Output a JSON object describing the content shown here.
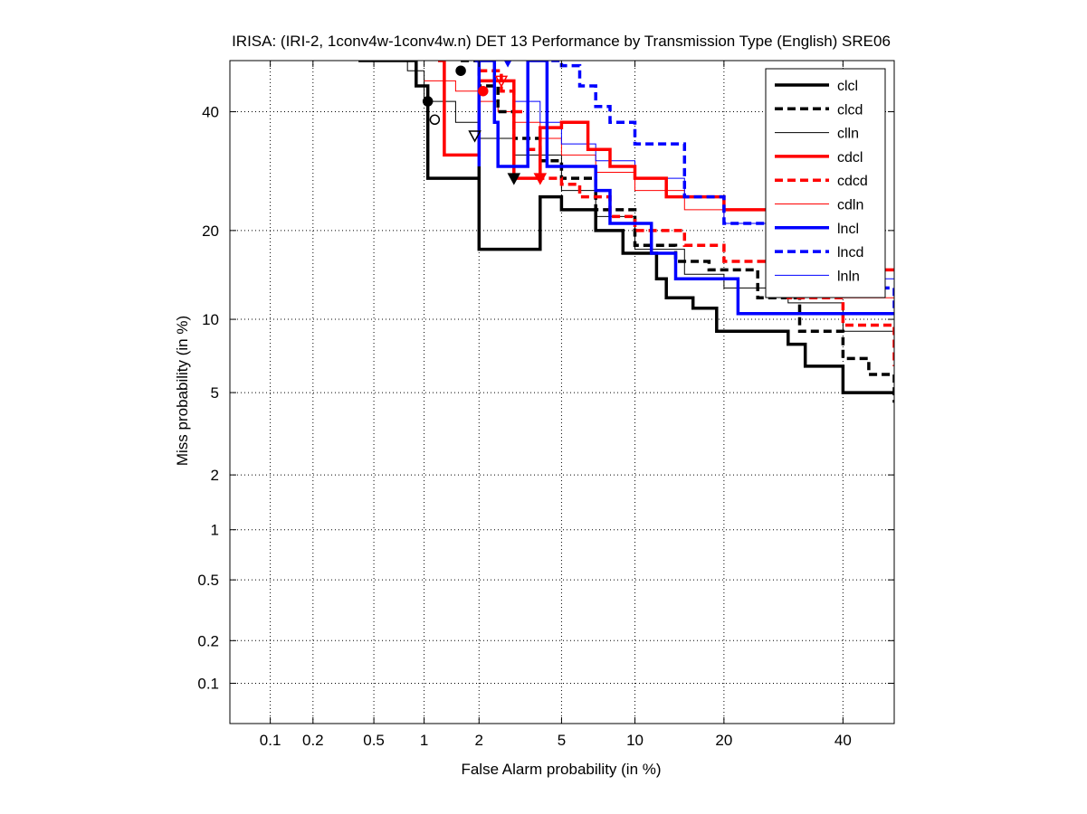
{
  "chart_data": {
    "type": "line",
    "title": "IRISA: (IRI-2, 1conv4w-1conv4w.n) DET 13 Performance by Transmission Type (English) SRE06",
    "xlabel": "False Alarm probability (in %)",
    "ylabel": "Miss probability (in %)",
    "x_scale": "probit",
    "y_scale": "probit",
    "xlim": [
      0.05,
      50
    ],
    "ylim": [
      0.05,
      50
    ],
    "x_ticks": [
      0.1,
      0.2,
      0.5,
      1,
      2,
      5,
      10,
      20,
      40
    ],
    "x_tick_labels": [
      "0.1",
      "0.2",
      "0.5",
      "1",
      "2",
      "5",
      "10",
      "20",
      "40"
    ],
    "y_ticks": [
      0.1,
      0.2,
      0.5,
      1,
      2,
      5,
      10,
      20,
      40
    ],
    "y_tick_labels": [
      "0.1",
      "0.2",
      "0.5",
      "1",
      "2",
      "5",
      "10",
      "20",
      "40"
    ],
    "grid": true,
    "legend_position": "top-right",
    "series": [
      {
        "name": "clcl",
        "color": "#000000",
        "style": "solid",
        "width": "thick",
        "x": [
          0.4,
          0.9,
          0.9,
          1.05,
          1.05,
          1.9,
          2.0,
          2.0,
          4.0,
          4.0,
          5.0,
          7.0,
          9.0,
          12.0,
          13.0,
          16.0,
          19.0,
          30.0,
          33.0,
          40.0,
          50.0
        ],
        "y": [
          50.0,
          50.0,
          45.0,
          45.0,
          28.0,
          28.0,
          30.0,
          17.5,
          17.5,
          25.0,
          23.0,
          20.0,
          17.0,
          14.0,
          12.0,
          11.0,
          9.0,
          8.0,
          6.5,
          5.0,
          5.0
        ]
      },
      {
        "name": "clcd",
        "color": "#000000",
        "style": "dashed",
        "width": "thick",
        "x": [
          1.6,
          2.0,
          2.5,
          3.0,
          4.0,
          5.0,
          7.0,
          10.0,
          14.0,
          18.0,
          25.0,
          32.0,
          40.0,
          45.0,
          50.0
        ],
        "y": [
          50.0,
          45.0,
          40.0,
          35.0,
          31.0,
          28.0,
          23.0,
          18.0,
          16.0,
          15.0,
          12.0,
          9.0,
          7.0,
          6.0,
          4.5
        ]
      },
      {
        "name": "clln",
        "color": "#000000",
        "style": "solid",
        "width": "thin",
        "x": [
          0.4,
          0.8,
          1.0,
          1.5,
          2.0,
          3.0,
          5.0,
          7.0,
          10.0,
          15.0,
          20.0,
          30.0,
          40.0,
          50.0
        ],
        "y": [
          50.0,
          48.0,
          42.0,
          38.0,
          35.0,
          32.0,
          26.0,
          22.0,
          17.5,
          14.5,
          13.0,
          11.5,
          9.0,
          7.5
        ]
      },
      {
        "name": "cdcl",
        "color": "#ff0000",
        "style": "solid",
        "width": "thick",
        "x": [
          1.2,
          1.3,
          1.3,
          2.0,
          2.0,
          2.6,
          3.0,
          3.0,
          3.4,
          4.0,
          5.0,
          6.5,
          8.0,
          10.0,
          13.0,
          20.0,
          30.0,
          40.0,
          50.0
        ],
        "y": [
          50.0,
          48.0,
          32.0,
          32.0,
          46.0,
          46.0,
          36.0,
          28.0,
          28.0,
          37.0,
          38.0,
          33.0,
          30.0,
          28.0,
          25.0,
          23.0,
          21.0,
          15.0,
          15.0
        ]
      },
      {
        "name": "cdcd",
        "color": "#ff0000",
        "style": "dashed",
        "width": "thick",
        "x": [
          2.0,
          2.6,
          3.0,
          3.5,
          4.0,
          5.0,
          6.0,
          8.0,
          10.0,
          15.0,
          20.0,
          30.0,
          40.0,
          50.0
        ],
        "y": [
          48.0,
          44.0,
          40.0,
          33.0,
          28.0,
          27.0,
          25.0,
          22.0,
          20.0,
          18.0,
          16.0,
          12.0,
          9.5,
          6.5
        ]
      },
      {
        "name": "cdln",
        "color": "#ff0000",
        "style": "solid",
        "width": "thin",
        "x": [
          1.0,
          1.5,
          2.0,
          2.5,
          3.0,
          4.0,
          5.0,
          7.0,
          10.0,
          15.0,
          20.0,
          30.0,
          40.0,
          50.0
        ],
        "y": [
          46.0,
          44.0,
          42.0,
          40.0,
          38.0,
          35.0,
          32.0,
          29.0,
          26.0,
          23.0,
          21.0,
          17.0,
          12.0,
          8.0
        ]
      },
      {
        "name": "lncl",
        "color": "#0000ff",
        "style": "solid",
        "width": "thick",
        "x": [
          1.9,
          2.0,
          2.0,
          2.4,
          2.4,
          2.5,
          3.0,
          3.5,
          3.5,
          4.3,
          4.3,
          5.0,
          7.0,
          8.0,
          10.0,
          11.5,
          14.0,
          18.0,
          22.0,
          50.0
        ],
        "y": [
          50.0,
          30.0,
          50.0,
          50.0,
          38.0,
          30.0,
          30.0,
          30.0,
          50.0,
          50.0,
          30.0,
          30.0,
          26.0,
          21.0,
          21.0,
          17.0,
          14.0,
          14.0,
          10.5,
          10.5
        ]
      },
      {
        "name": "lncd",
        "color": "#0000ff",
        "style": "dashed",
        "width": "thick",
        "x": [
          4.5,
          5.0,
          6.0,
          7.0,
          8.0,
          10.0,
          15.0,
          20.0,
          30.0,
          40.0,
          50.0
        ],
        "y": [
          50.0,
          49.0,
          45.0,
          41.0,
          38.0,
          34.0,
          25.0,
          21.0,
          17.0,
          13.0,
          11.0
        ]
      },
      {
        "name": "lnln",
        "color": "#0000ff",
        "style": "solid",
        "width": "thin",
        "x": [
          2.0,
          3.0,
          4.0,
          5.0,
          7.0,
          10.0,
          15.0,
          20.0,
          30.0,
          40.0,
          50.0
        ],
        "y": [
          46.0,
          42.0,
          38.0,
          34.0,
          31.0,
          28.0,
          25.0,
          21.0,
          18.0,
          14.0,
          12.0
        ]
      }
    ],
    "markers": [
      {
        "series": "clcl",
        "kind": "min-dcf",
        "shape": "circle",
        "filled": true,
        "x": 1.05,
        "y": 42.0,
        "color": "#000000"
      },
      {
        "series": "clcl",
        "kind": "actual-dcf",
        "shape": "triangle-down",
        "filled": true,
        "x": 3.0,
        "y": 28.0,
        "color": "#000000"
      },
      {
        "series": "clcd",
        "kind": "min-dcf",
        "shape": "circle",
        "filled": true,
        "x": 1.6,
        "y": 48.0,
        "color": "#000000"
      },
      {
        "series": "clln",
        "kind": "min-dcf",
        "shape": "circle",
        "filled": false,
        "x": 1.15,
        "y": 38.5,
        "color": "#000000"
      },
      {
        "series": "clln",
        "kind": "actual-dcf",
        "shape": "triangle-down",
        "filled": false,
        "x": 1.9,
        "y": 35.5,
        "color": "#000000"
      },
      {
        "series": "cdcl",
        "kind": "min-dcf",
        "shape": "circle",
        "filled": true,
        "x": 2.1,
        "y": 44.0,
        "color": "#ff0000"
      },
      {
        "series": "cdcd",
        "kind": "actual-dcf",
        "shape": "triangle-down",
        "filled": true,
        "x": 4.0,
        "y": 28.0,
        "color": "#ff0000"
      },
      {
        "series": "cdln",
        "kind": "actual-dcf",
        "shape": "triangle-down",
        "filled": false,
        "x": 2.6,
        "y": 46.0,
        "color": "#ff0000"
      },
      {
        "series": "lncl",
        "kind": "actual-dcf",
        "shape": "triangle-down",
        "filled": true,
        "x": 2.8,
        "y": 50.0,
        "color": "#0000ff"
      }
    ]
  }
}
